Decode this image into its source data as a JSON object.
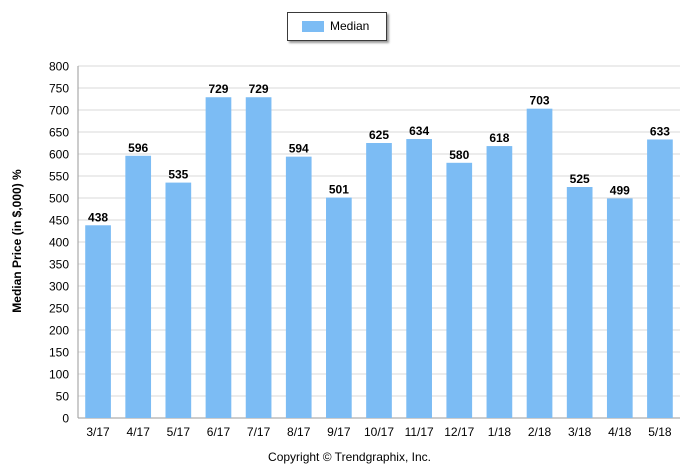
{
  "chart_data": {
    "type": "bar",
    "categories": [
      "3/17",
      "4/17",
      "5/17",
      "6/17",
      "7/17",
      "8/17",
      "9/17",
      "10/17",
      "11/17",
      "12/17",
      "1/18",
      "2/18",
      "3/18",
      "4/18",
      "5/18"
    ],
    "series": [
      {
        "name": "Median",
        "values": [
          438,
          596,
          535,
          729,
          729,
          594,
          501,
          625,
          634,
          580,
          618,
          703,
          525,
          499,
          633
        ]
      }
    ],
    "ylabel": "Median Price (in $,000) %",
    "xlabel": "",
    "ylim": [
      0,
      800
    ],
    "yticks": [
      0,
      50,
      100,
      150,
      200,
      250,
      300,
      350,
      400,
      450,
      500,
      550,
      600,
      650,
      700,
      750,
      800
    ],
    "grid": true,
    "legend": "top-center",
    "bar_color": "#7cbcf4",
    "data_labels": true
  },
  "footer": {
    "copyright": "Copyright © Trendgraphix, Inc."
  }
}
